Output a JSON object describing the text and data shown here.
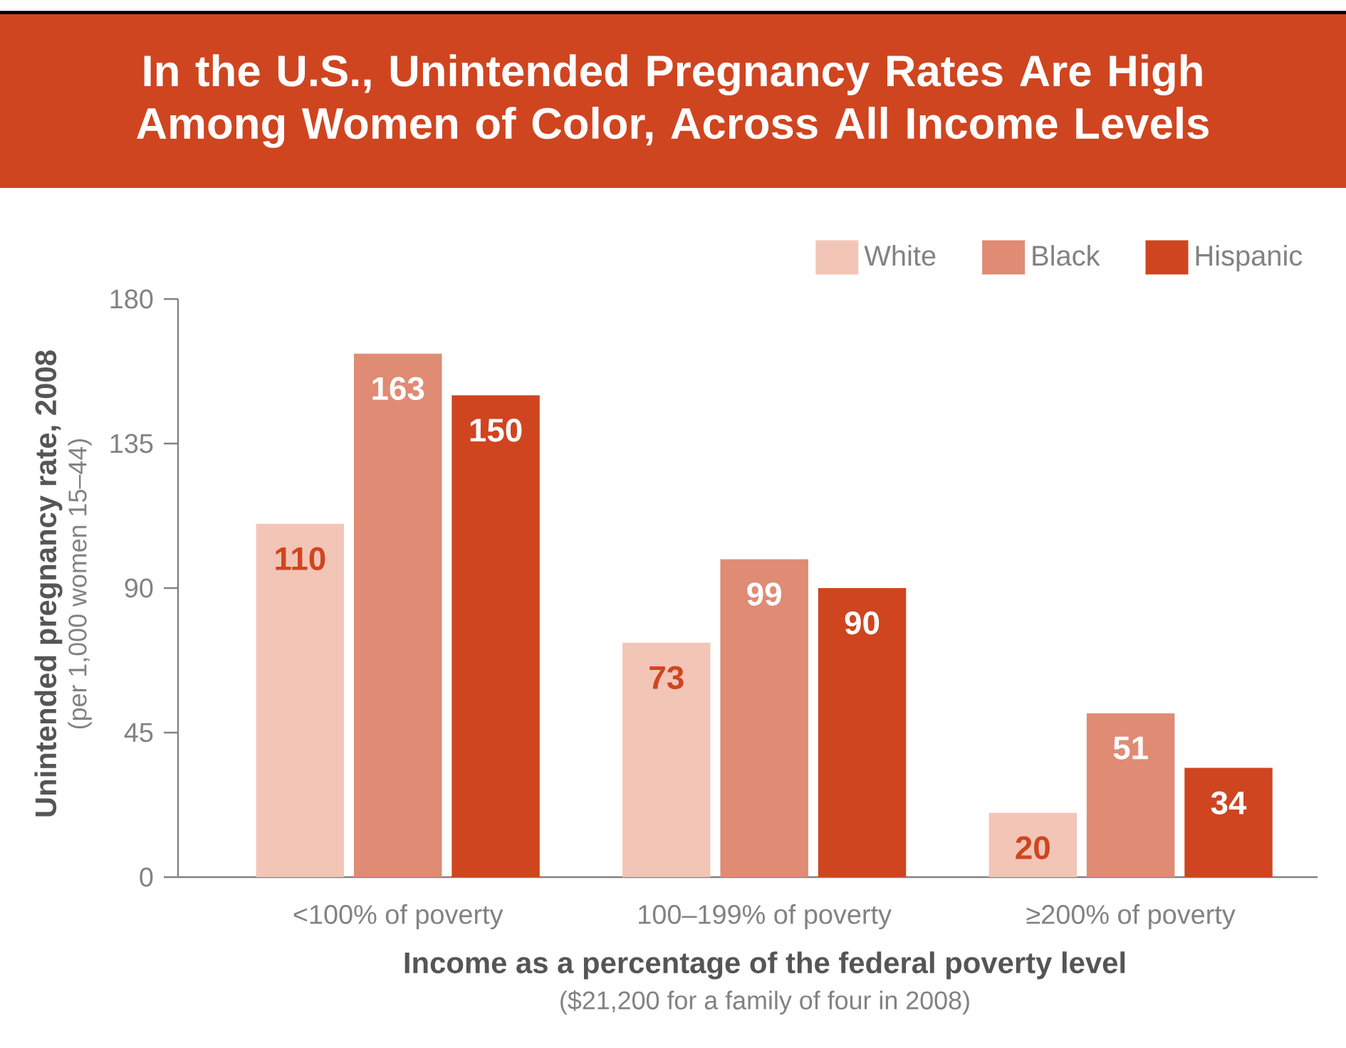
{
  "chart_data": {
    "type": "bar",
    "title": "In the U.S., Unintended Pregnancy Rates Are High Among Women of Color, Across All Income Levels",
    "xlabel": "Income as a percentage of the federal poverty level",
    "ylabel": "Unintended pregnancy rate, 2008",
    "annotations": [
      "(per 1,000 women 15–44)",
      "($21,200 for a family of four in 2008)"
    ],
    "categories": [
      "<100% of poverty",
      "100–199% of poverty",
      "≥200% of poverty"
    ],
    "series": [
      {
        "name": "White",
        "color": "#f2c5b7",
        "values": [
          110,
          73,
          20
        ]
      },
      {
        "name": "Black",
        "color": "#e08b74",
        "values": [
          163,
          99,
          51
        ]
      },
      {
        "name": "Hispanic",
        "color": "#cf4520",
        "values": [
          150,
          90,
          34
        ]
      }
    ],
    "ylim": [
      0,
      180
    ],
    "yticks": [
      0,
      45,
      90,
      135,
      180
    ],
    "legend": "top right",
    "data_labels": true
  }
}
